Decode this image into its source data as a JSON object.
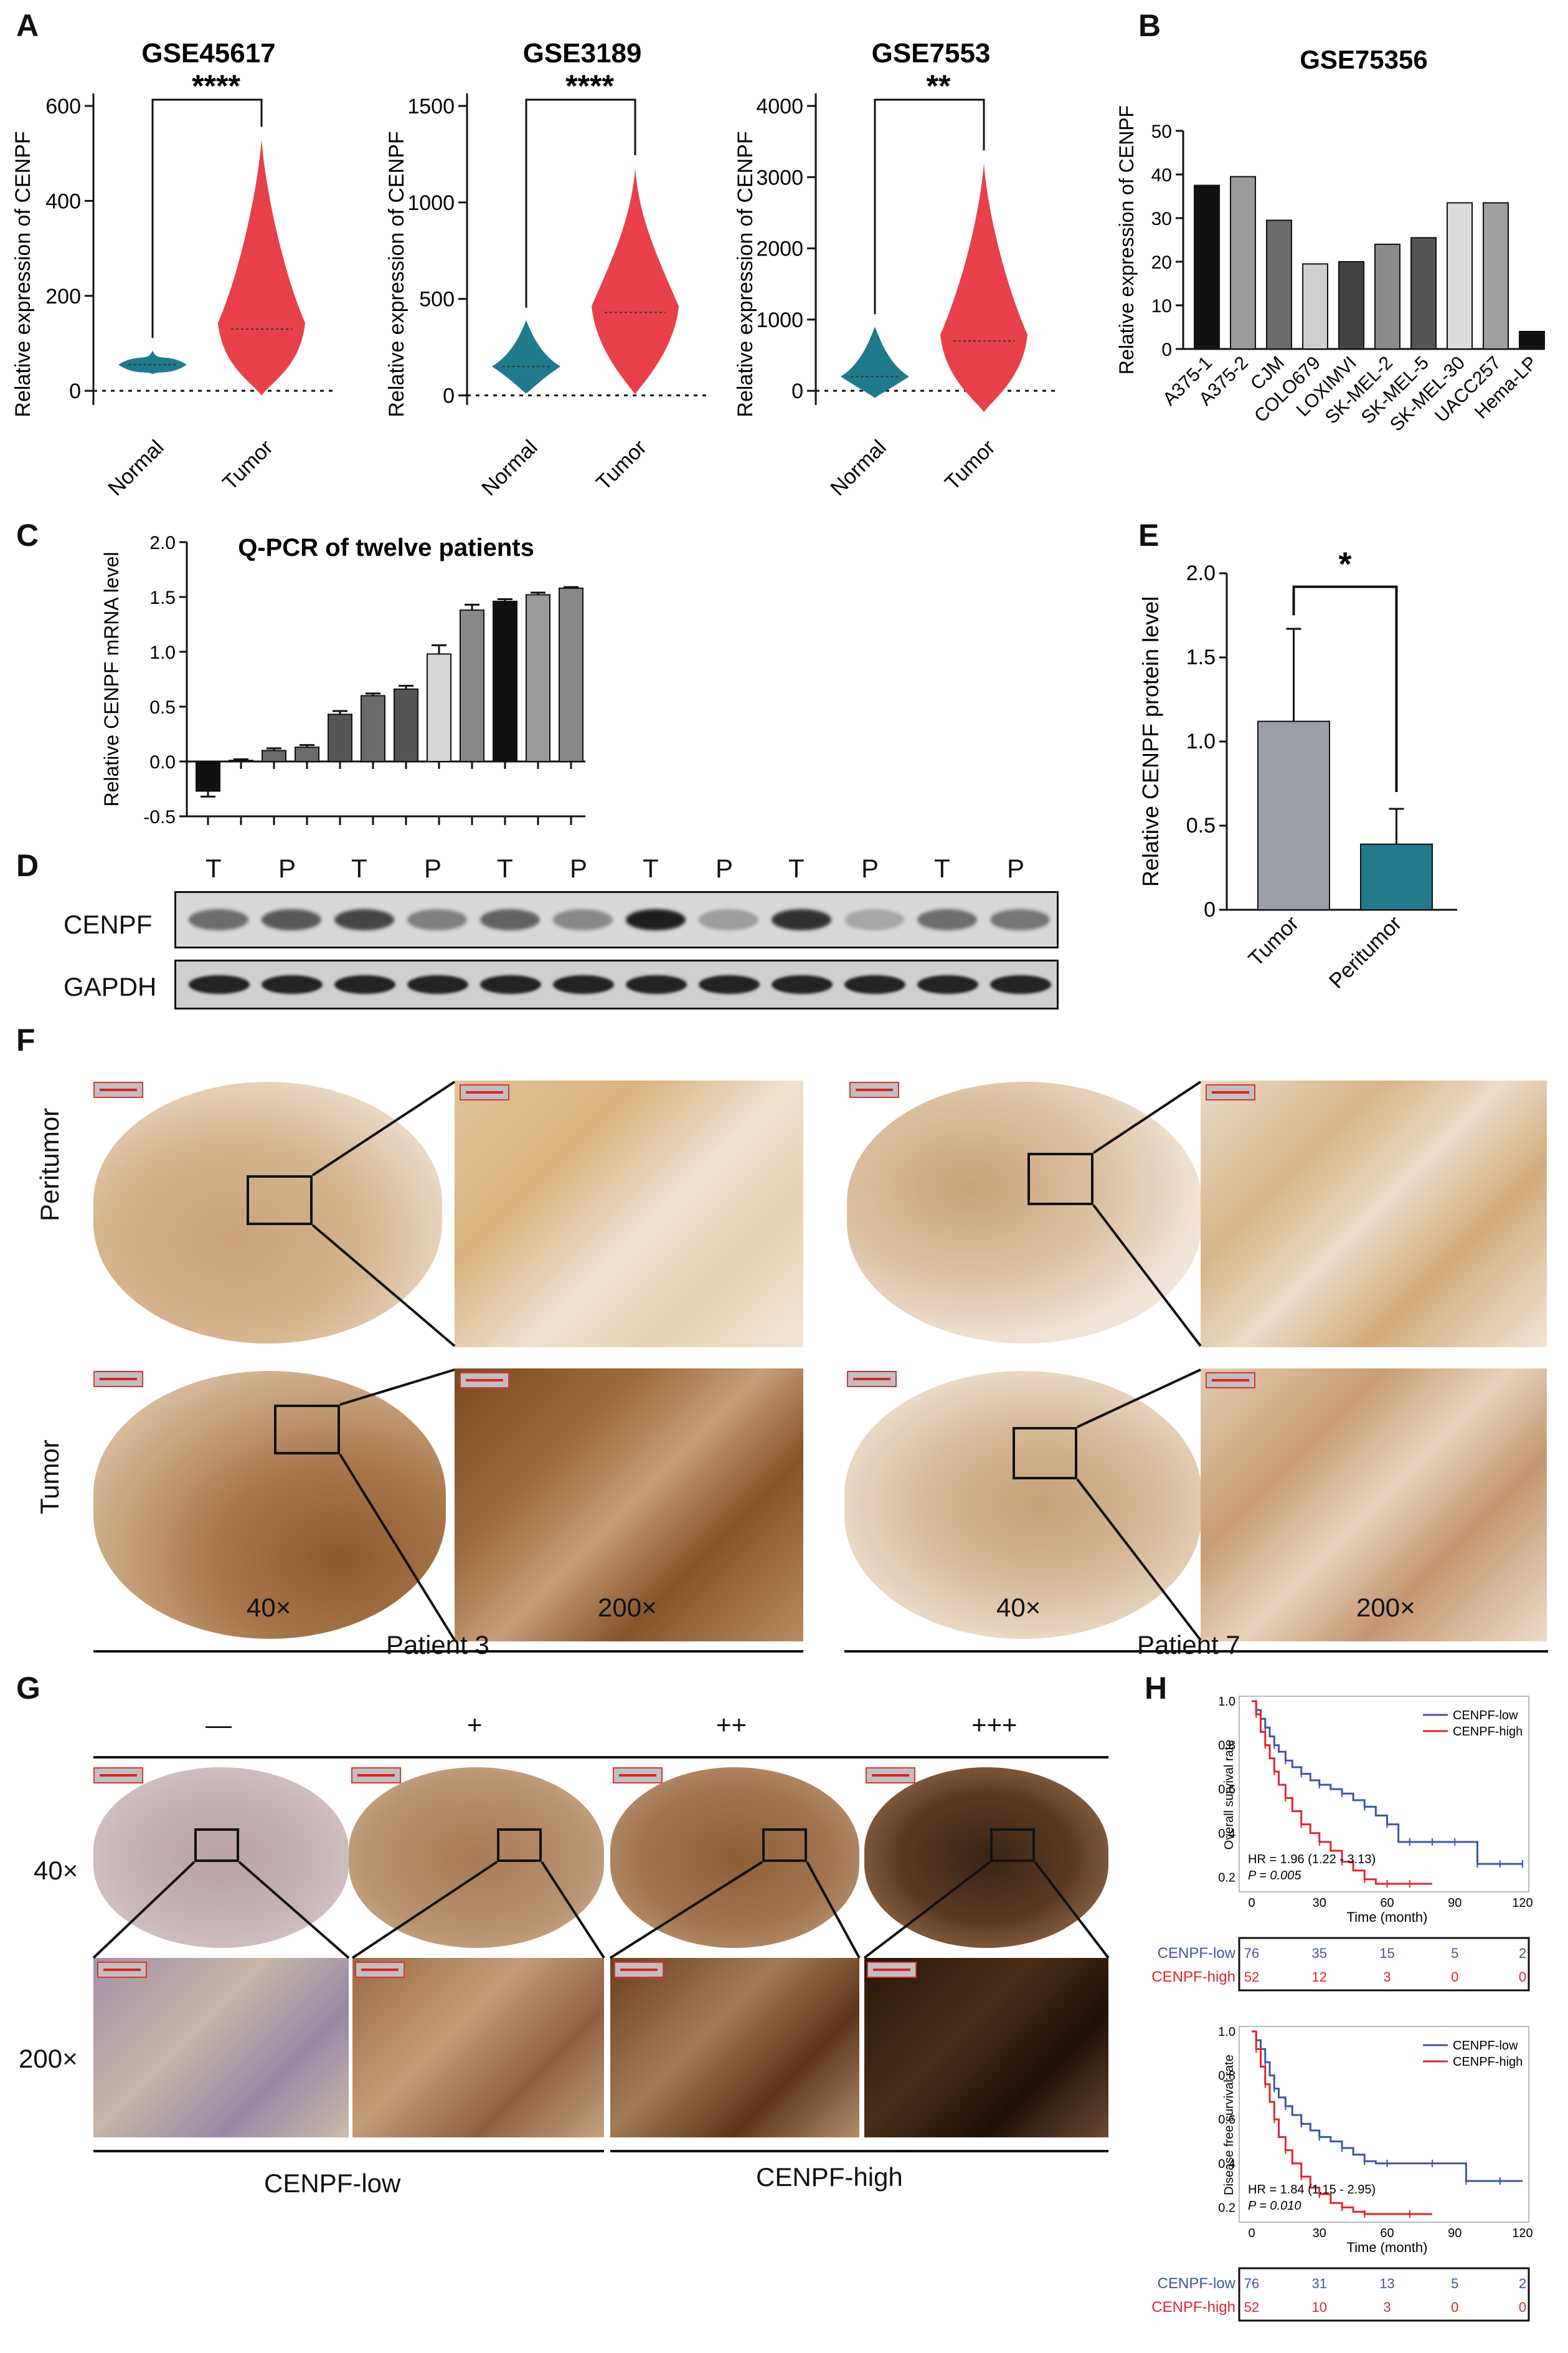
{
  "panel_labels": {
    "A": "A",
    "B": "B",
    "C": "C",
    "D": "D",
    "E": "E",
    "F": "F",
    "G": "G",
    "H": "H"
  },
  "chart_data": [
    {
      "id": "violin1",
      "type": "violin",
      "title": "GSE45617",
      "significance": "****",
      "ylabel": "Relative expression of CENPF",
      "categories": [
        "Normal",
        "Tumor"
      ],
      "yticks": [
        "0",
        "200",
        "400",
        "600"
      ],
      "ylim": [
        -30,
        600
      ],
      "series": [
        {
          "values": [
            55,
            130
          ],
          "range": [
            [
              35,
              85
            ],
            [
              -10,
              530
            ]
          ]
        }
      ],
      "colors": [
        "#1f7a8c",
        "#e8404a"
      ]
    },
    {
      "id": "violin2",
      "type": "violin",
      "title": "GSE3189",
      "significance": "****",
      "ylabel": "Relative expression of CENPF",
      "categories": [
        "Normal",
        "Tumor"
      ],
      "yticks": [
        "0",
        "500",
        "1000",
        "1500"
      ],
      "ylim": [
        -50,
        1500
      ],
      "series": [
        {
          "values": [
            150,
            430
          ],
          "range": [
            [
              10,
              390
            ],
            [
              5,
              1180
            ]
          ]
        }
      ],
      "colors": [
        "#1f7a8c",
        "#e8404a"
      ]
    },
    {
      "id": "violin3",
      "type": "violin",
      "title": "GSE7553",
      "significance": "**",
      "ylabel": "Relative expression of CENPF",
      "categories": [
        "Normal",
        "Tumor"
      ],
      "yticks": [
        "0",
        "1000",
        "2000",
        "3000",
        "4000"
      ],
      "ylim": [
        -200,
        4000
      ],
      "series": [
        {
          "values": [
            200,
            700
          ],
          "range": [
            [
              -100,
              900
            ],
            [
              -300,
              3200
            ]
          ]
        }
      ],
      "colors": [
        "#1f7a8c",
        "#e8404a"
      ]
    },
    {
      "id": "barB",
      "type": "bar",
      "title": "GSE75356",
      "ylabel": "Relative expression of CENPF",
      "ylim": [
        0,
        50
      ],
      "yticks": [
        "0",
        "10",
        "20",
        "30",
        "40",
        "50"
      ],
      "categories": [
        "A375-1",
        "A375-2",
        "CJM",
        "COLO679",
        "LOXIMVI",
        "SK-MEL-2",
        "SK-MEL-5",
        "SK-MEL-30",
        "UACC257",
        "Hema-LP"
      ],
      "values": [
        37.5,
        39.5,
        29.5,
        19.5,
        20,
        24,
        25.5,
        33.5,
        33.5,
        4
      ],
      "colors": [
        "#111111",
        "#9a9a9a",
        "#6b6b6b",
        "#cfcfcf",
        "#444444",
        "#8c8c8c",
        "#555555",
        "#dcdcdc",
        "#a0a0a0",
        "#111111"
      ]
    },
    {
      "id": "barC",
      "type": "bar",
      "title": "Q-PCR of twelve patients",
      "ylabel": "Relative CENPF mRNA level",
      "ylim": [
        -0.5,
        2.0
      ],
      "yticks": [
        "-0.5",
        "0.0",
        "0.5",
        "1.0",
        "1.5",
        "2.0"
      ],
      "values": [
        -0.27,
        0.01,
        0.1,
        0.13,
        0.43,
        0.6,
        0.66,
        0.98,
        1.38,
        1.46,
        1.52,
        1.58
      ],
      "errors": [
        0.05,
        0.01,
        0.02,
        0.02,
        0.03,
        0.02,
        0.03,
        0.08,
        0.05,
        0.02,
        0.02,
        0.01
      ],
      "colors": [
        "#111111",
        "#999999",
        "#6b6b6b",
        "#6b6b6b",
        "#555555",
        "#6b6b6b",
        "#555555",
        "#d7d7d7",
        "#888888",
        "#111111",
        "#999999",
        "#888888"
      ]
    },
    {
      "id": "barE",
      "type": "bar",
      "significance": "*",
      "ylabel": "Relative CENPF protein level",
      "ylim": [
        0,
        2.0
      ],
      "yticks": [
        "0",
        "0.5",
        "1.0",
        "1.5",
        "2.0"
      ],
      "categories": [
        "Tumor",
        "Peritumor"
      ],
      "values": [
        1.12,
        0.39
      ],
      "errors": [
        0.55,
        0.21
      ],
      "colors": [
        "#9aa0a6",
        "#237a8c"
      ]
    },
    {
      "id": "kmOS",
      "type": "line",
      "ylabel": "Overall survival rate",
      "xlabel": "Time (month)",
      "xlim": [
        0,
        120
      ],
      "ylim": [
        0.15,
        1.0
      ],
      "xticks": [
        "0",
        "30",
        "60",
        "90",
        "120"
      ],
      "yticks": [
        "0.2",
        "0.4",
        "0.6",
        "0.8",
        "1.0"
      ],
      "hr": "HR = 1.96 (1.22 - 3.13)",
      "p": "P = 0.005",
      "series": [
        {
          "name": "CENPF-low",
          "color": "#3a57a8",
          "x": [
            0,
            2,
            4,
            6,
            8,
            10,
            12,
            15,
            18,
            22,
            26,
            30,
            35,
            40,
            45,
            50,
            55,
            60,
            65,
            70,
            75,
            80,
            85,
            90,
            95,
            100,
            105,
            110,
            115,
            120
          ],
          "y": [
            1.0,
            0.96,
            0.92,
            0.88,
            0.84,
            0.8,
            0.77,
            0.73,
            0.7,
            0.67,
            0.64,
            0.62,
            0.6,
            0.58,
            0.55,
            0.52,
            0.48,
            0.44,
            0.36,
            0.36,
            0.36,
            0.36,
            0.36,
            0.36,
            0.36,
            0.26,
            0.26,
            0.26,
            0.26,
            0.26
          ]
        },
        {
          "name": "CENPF-high",
          "color": "#e0262b",
          "x": [
            0,
            2,
            4,
            6,
            8,
            10,
            12,
            15,
            18,
            22,
            26,
            30,
            35,
            40,
            45,
            50,
            55,
            60,
            65,
            70,
            80
          ],
          "y": [
            1.0,
            0.94,
            0.86,
            0.8,
            0.74,
            0.68,
            0.62,
            0.56,
            0.5,
            0.44,
            0.4,
            0.36,
            0.32,
            0.27,
            0.23,
            0.19,
            0.17,
            0.17,
            0.17,
            0.17,
            0.17
          ]
        }
      ],
      "risk_table": {
        "rows": [
          {
            "name": "CENPF-low",
            "values": [
              "76",
              "35",
              "15",
              "5",
              "2"
            ]
          },
          {
            "name": "CENPF-high",
            "values": [
              "52",
              "12",
              "3",
              "0",
              "0"
            ]
          }
        ]
      }
    },
    {
      "id": "kmDFS",
      "type": "line",
      "ylabel": "Disease free survival rate",
      "xlabel": "Time (month)",
      "xlim": [
        0,
        120
      ],
      "ylim": [
        0.15,
        1.0
      ],
      "xticks": [
        "0",
        "30",
        "60",
        "90",
        "120"
      ],
      "yticks": [
        "0.2",
        "0.4",
        "0.6",
        "0.8",
        "1.0"
      ],
      "hr": "HR = 1.84 (1.15 - 2.95)",
      "p": "P = 0.010",
      "series": [
        {
          "name": "CENPF-low",
          "color": "#3a57a8",
          "x": [
            0,
            2,
            4,
            6,
            8,
            10,
            12,
            15,
            18,
            22,
            26,
            30,
            35,
            40,
            45,
            50,
            55,
            60,
            70,
            80,
            90,
            95,
            100,
            110,
            120
          ],
          "y": [
            1.0,
            0.96,
            0.92,
            0.86,
            0.8,
            0.74,
            0.7,
            0.66,
            0.62,
            0.58,
            0.55,
            0.52,
            0.5,
            0.47,
            0.44,
            0.41,
            0.4,
            0.4,
            0.4,
            0.4,
            0.4,
            0.32,
            0.32,
            0.32,
            0.32
          ]
        },
        {
          "name": "CENPF-high",
          "color": "#e0262b",
          "x": [
            0,
            2,
            4,
            6,
            8,
            10,
            12,
            15,
            18,
            22,
            26,
            30,
            35,
            40,
            45,
            50,
            60,
            70,
            80
          ],
          "y": [
            1.0,
            0.92,
            0.84,
            0.76,
            0.68,
            0.6,
            0.52,
            0.46,
            0.4,
            0.34,
            0.29,
            0.26,
            0.22,
            0.2,
            0.18,
            0.17,
            0.17,
            0.17,
            0.17
          ]
        }
      ],
      "risk_table": {
        "rows": [
          {
            "name": "CENPF-low",
            "values": [
              "76",
              "31",
              "13",
              "5",
              "2"
            ]
          },
          {
            "name": "CENPF-high",
            "values": [
              "52",
              "10",
              "3",
              "0",
              "0"
            ]
          }
        ]
      }
    }
  ],
  "blot": {
    "lanes": [
      "T",
      "P",
      "T",
      "P",
      "T",
      "P",
      "T",
      "P",
      "T",
      "P",
      "T",
      "P"
    ],
    "rows": [
      "CENPF",
      "GAPDH"
    ],
    "cenpf_intensity": [
      0.55,
      0.65,
      0.75,
      0.45,
      0.6,
      0.4,
      0.95,
      0.3,
      0.85,
      0.25,
      0.55,
      0.5
    ]
  },
  "ihc_F": {
    "rows": [
      "Peritumor",
      "Tumor"
    ],
    "mags": [
      "40×",
      "200×",
      "40×",
      "200×"
    ],
    "patients": [
      "Patient 3",
      "Patient 7"
    ]
  },
  "ihc_G": {
    "grades": [
      "—",
      "+",
      "++",
      "+++"
    ],
    "mags": [
      "40×",
      "200×"
    ],
    "groups": [
      "CENPF-low",
      "CENPF-high"
    ]
  }
}
